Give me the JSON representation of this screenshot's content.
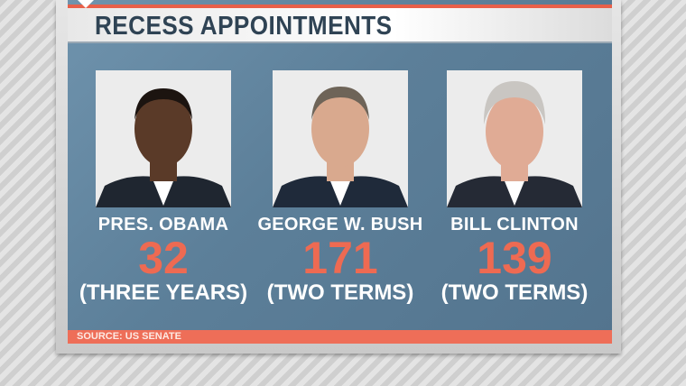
{
  "title": "RECESS APPOINTMENTS",
  "presidents": [
    {
      "name": "PRES. OBAMA",
      "count": "32",
      "term": "(THREE YEARS)",
      "skin": "#5a3a28",
      "hair": "#1c1410"
    },
    {
      "name": "GEORGE W. BUSH",
      "count": "171",
      "term": "(TWO TERMS)",
      "skin": "#d9a98e",
      "hair": "#6e6458"
    },
    {
      "name": "BILL CLINTON",
      "count": "139",
      "term": "(TWO TERMS)",
      "skin": "#e0ab95",
      "hair": "#c9c6c2"
    }
  ],
  "source": "SOURCE: US SENATE",
  "colors": {
    "accent": "#ee6a52",
    "panel": "#5c7f99",
    "title_text": "#2f4354"
  }
}
